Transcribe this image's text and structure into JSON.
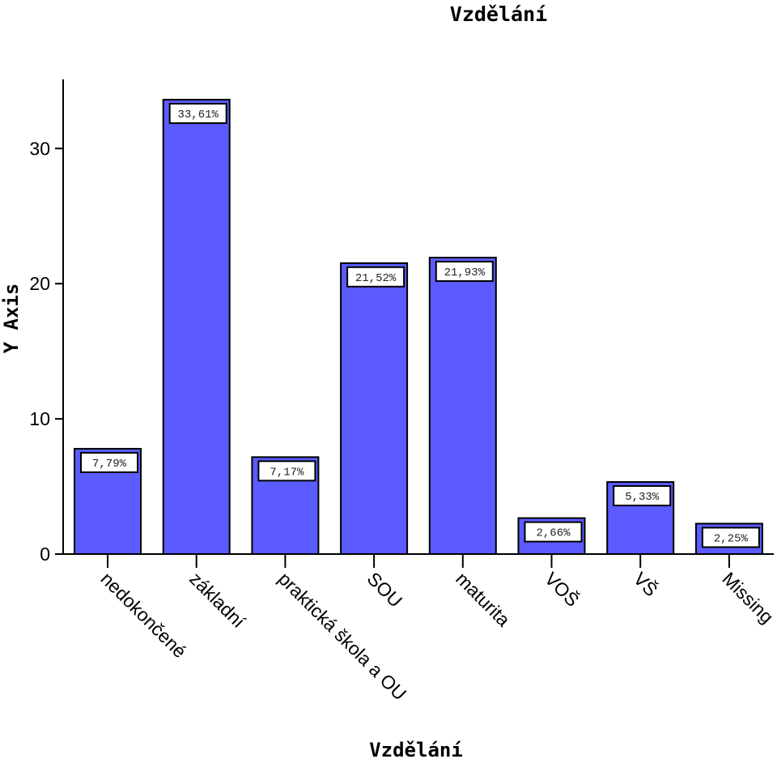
{
  "chart_data": {
    "type": "bar",
    "title": "Vzdělání",
    "xlabel": "Vzdělání",
    "ylabel": "Y Axis",
    "ylim": [
      0,
      35
    ],
    "yticks": [
      0,
      10,
      20,
      30
    ],
    "grid": false,
    "bar_color": "#5b5bff",
    "bar_edge_color": "#000000",
    "categories": [
      "nedokončené",
      "základní",
      "praktická škola a OU",
      "SOU",
      "maturita",
      "VOŠ",
      "VŠ",
      "Missing"
    ],
    "values": [
      7.79,
      33.61,
      7.17,
      21.52,
      21.93,
      2.66,
      5.33,
      2.25
    ],
    "data_labels": [
      "7,79%",
      "33,61%",
      "7,17%",
      "21,52%",
      "21,93%",
      "2,66%",
      "5,33%",
      "2,25%"
    ]
  }
}
